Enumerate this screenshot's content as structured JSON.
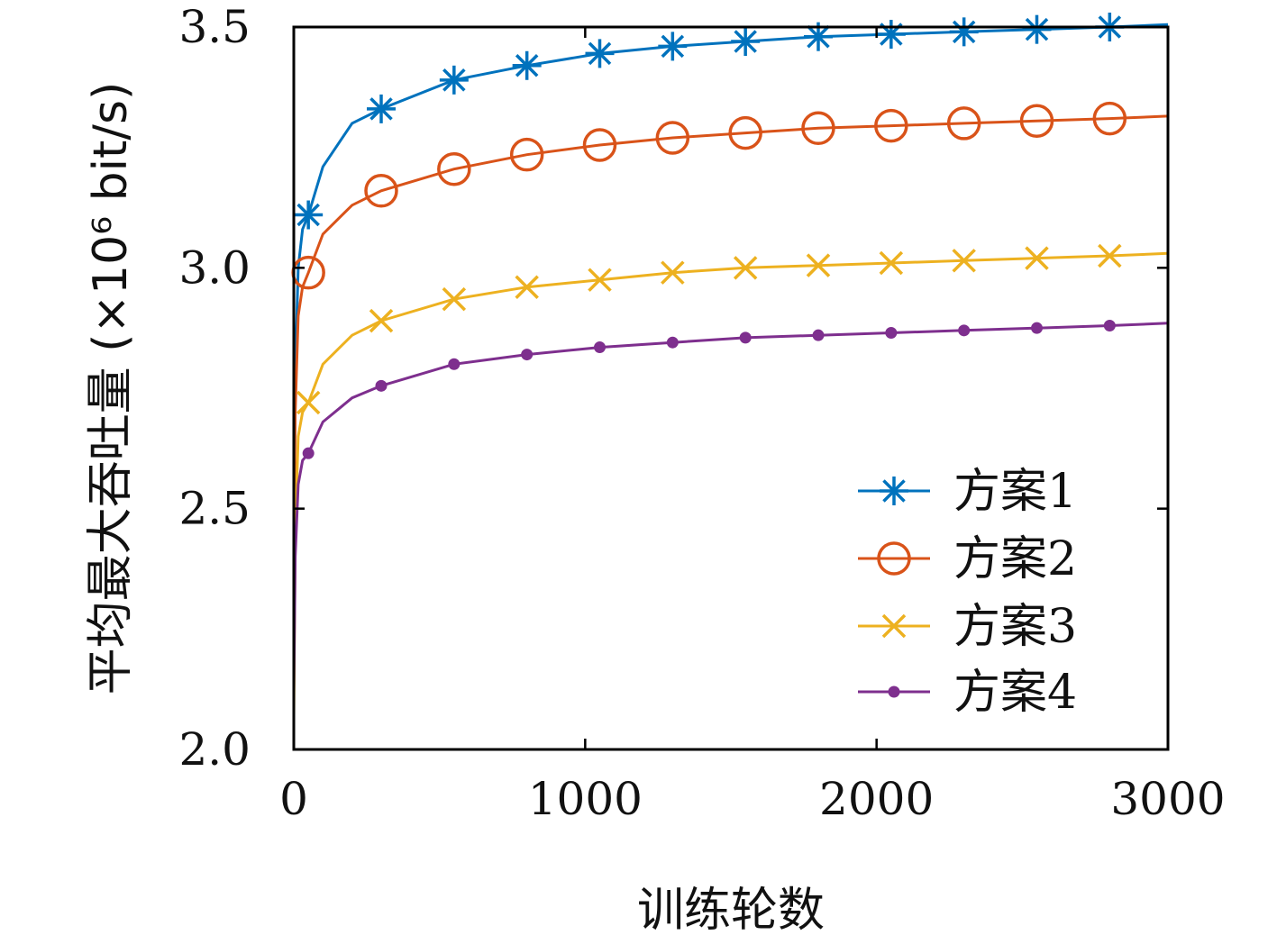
{
  "chart_data": {
    "type": "line",
    "title": "",
    "xlabel": "训练轮数",
    "ylabel": "平均最大吞吐量 (×10⁶ bit/s)",
    "xlim": [
      0,
      3000
    ],
    "ylim": [
      2.0,
      3.5
    ],
    "xticks": [
      0,
      1000,
      2000,
      3000
    ],
    "xtick_labels": [
      "0",
      "1000",
      "2000",
      "3000"
    ],
    "yticks": [
      2.0,
      2.5,
      3.0,
      3.5
    ],
    "ytick_labels": [
      "2.0",
      "2.5",
      "3.0",
      "3.5"
    ],
    "grid": false,
    "legend_position": "bottom-right",
    "series": [
      {
        "name": "方案1",
        "color": "#0072BD",
        "marker": "asterisk",
        "x": [
          0,
          5,
          15,
          30,
          50,
          100,
          200,
          300,
          550,
          800,
          1050,
          1300,
          1550,
          1800,
          2050,
          2300,
          2550,
          2800,
          3000
        ],
        "y": [
          2.32,
          2.78,
          3.0,
          3.08,
          3.11,
          3.21,
          3.3,
          3.33,
          3.39,
          3.42,
          3.445,
          3.46,
          3.47,
          3.48,
          3.485,
          3.49,
          3.495,
          3.5,
          3.505
        ]
      },
      {
        "name": "方案2",
        "color": "#D95319",
        "marker": "circle",
        "x": [
          0,
          5,
          15,
          30,
          50,
          100,
          200,
          300,
          550,
          800,
          1050,
          1300,
          1550,
          1800,
          2050,
          2300,
          2550,
          2800,
          3000
        ],
        "y": [
          2.4,
          2.7,
          2.9,
          2.96,
          2.99,
          3.07,
          3.13,
          3.16,
          3.205,
          3.235,
          3.255,
          3.27,
          3.28,
          3.29,
          3.295,
          3.3,
          3.305,
          3.31,
          3.315
        ]
      },
      {
        "name": "方案3",
        "color": "#EDB120",
        "marker": "x",
        "x": [
          0,
          5,
          15,
          30,
          50,
          100,
          200,
          300,
          550,
          800,
          1050,
          1300,
          1550,
          1800,
          2050,
          2300,
          2550,
          2800,
          3000
        ],
        "y": [
          2.07,
          2.45,
          2.65,
          2.7,
          2.72,
          2.8,
          2.86,
          2.89,
          2.935,
          2.96,
          2.975,
          2.99,
          3.0,
          3.005,
          3.01,
          3.015,
          3.02,
          3.025,
          3.03
        ]
      },
      {
        "name": "方案4",
        "color": "#7E2F8E",
        "marker": "dot",
        "x": [
          0,
          5,
          15,
          30,
          50,
          100,
          200,
          300,
          550,
          800,
          1050,
          1300,
          1550,
          1800,
          2050,
          2300,
          2550,
          2800,
          3000
        ],
        "y": [
          2.12,
          2.4,
          2.55,
          2.6,
          2.615,
          2.68,
          2.73,
          2.755,
          2.8,
          2.82,
          2.835,
          2.845,
          2.855,
          2.86,
          2.865,
          2.87,
          2.875,
          2.88,
          2.885
        ]
      }
    ],
    "marker_x": [
      50,
      300,
      550,
      800,
      1050,
      1300,
      1550,
      1800,
      2050,
      2300,
      2550,
      2800
    ]
  }
}
